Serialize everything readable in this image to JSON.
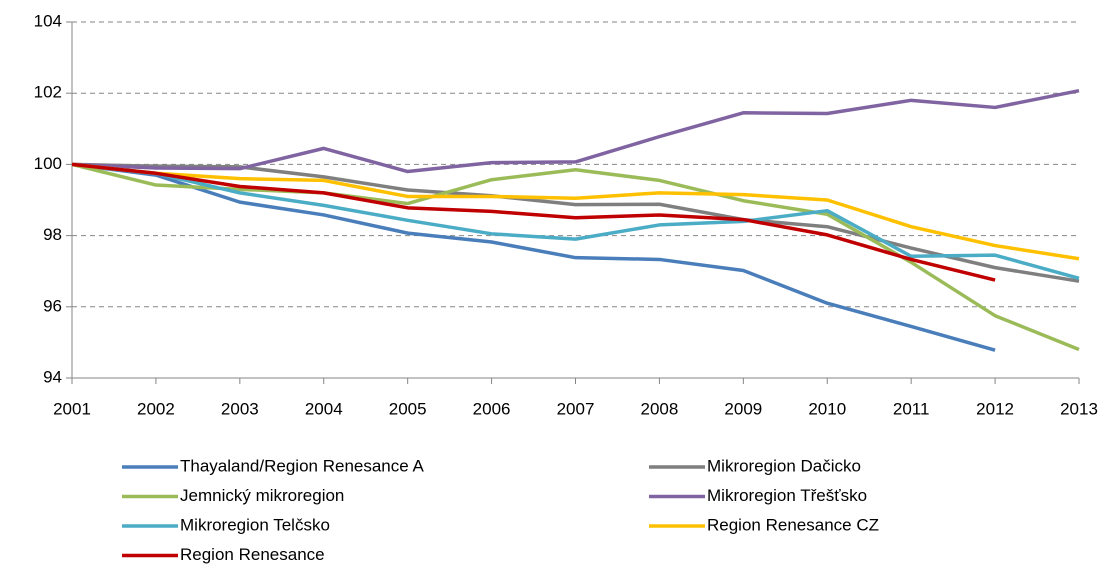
{
  "chart_data": {
    "type": "line",
    "categories": [
      "2001",
      "2002",
      "2003",
      "2004",
      "2005",
      "2006",
      "2007",
      "2008",
      "2009",
      "2010",
      "2011",
      "2012",
      "2013"
    ],
    "ylim": [
      94,
      104
    ],
    "yticks": [
      94,
      96,
      98,
      100,
      102,
      104
    ],
    "grid": true,
    "legend": "bottom",
    "series": [
      {
        "name": "Thayaland/Region Renesance A",
        "color": "#4a7ebb",
        "values": [
          100,
          99.7,
          98.94,
          98.58,
          98.07,
          97.82,
          97.38,
          97.33,
          97.02,
          96.1,
          95.45,
          94.78,
          null
        ]
      },
      {
        "name": "Mikroregion Dačicko",
        "color": "#7f7f7f",
        "values": [
          100,
          99.95,
          99.93,
          99.65,
          99.28,
          99.12,
          98.87,
          98.88,
          98.45,
          98.25,
          97.65,
          97.1,
          96.72
        ]
      },
      {
        "name": "Jemnický mikroregion",
        "color": "#9bbb59",
        "values": [
          100,
          99.42,
          99.3,
          99.2,
          98.9,
          99.57,
          99.85,
          99.55,
          98.98,
          98.6,
          97.25,
          95.75,
          94.8
        ]
      },
      {
        "name": "Mikroregion Třešťsko",
        "color": "#8064a2",
        "values": [
          100,
          99.9,
          99.88,
          100.45,
          99.8,
          100.05,
          100.07,
          100.78,
          101.45,
          101.43,
          101.8,
          101.6,
          102.07
        ]
      },
      {
        "name": "Mikroregion Telčsko",
        "color": "#4bacc6",
        "values": [
          100,
          99.75,
          99.2,
          98.85,
          98.43,
          98.05,
          97.9,
          98.3,
          98.4,
          98.7,
          97.42,
          97.45,
          96.8
        ]
      },
      {
        "name": "Region Renesance CZ",
        "color": "#ffc000",
        "values": [
          100,
          99.75,
          99.6,
          99.55,
          99.1,
          99.1,
          99.05,
          99.2,
          99.15,
          99.0,
          98.25,
          97.72,
          97.35
        ]
      },
      {
        "name": "Region Renesance",
        "color": "#c00000",
        "values": [
          100,
          99.75,
          99.38,
          99.2,
          98.78,
          98.68,
          98.5,
          98.58,
          98.45,
          98.02,
          97.33,
          96.75,
          null
        ]
      }
    ]
  }
}
